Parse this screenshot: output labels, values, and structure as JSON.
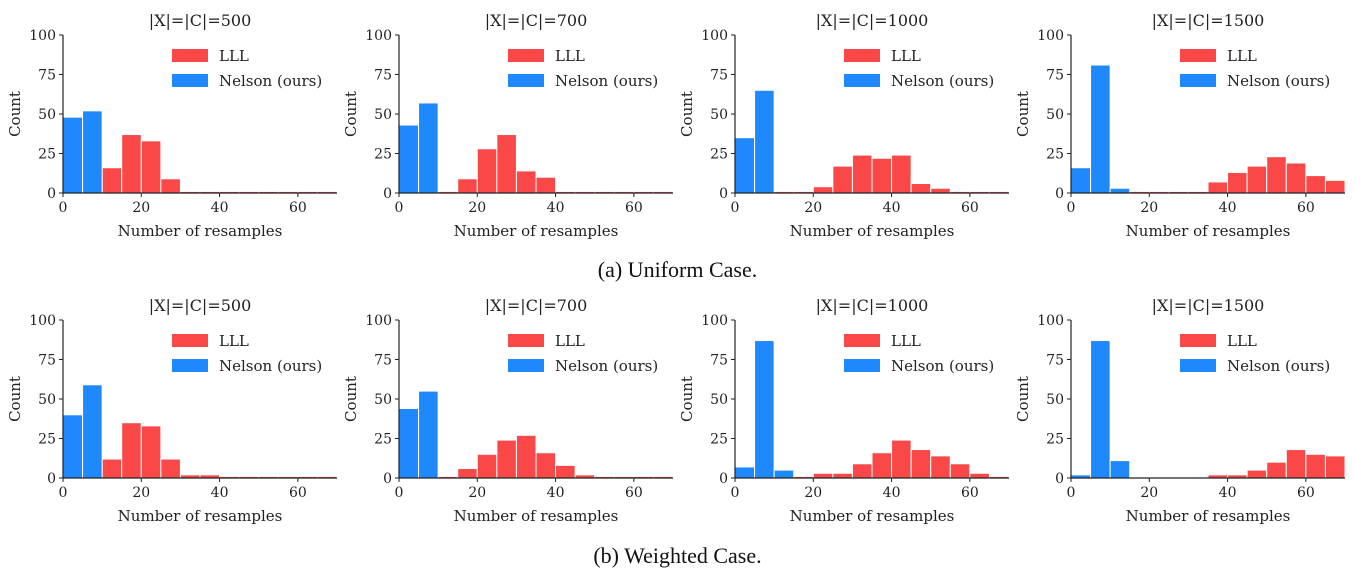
{
  "colors": {
    "lll": "#fa4848",
    "nelson": "#1f88fa",
    "axis": "#222222"
  },
  "captions": [
    "(a) Uniform Case.",
    "(b) Weighted Case."
  ],
  "chart_data": [
    {
      "type": "bar",
      "row": 0,
      "title": "|X|=|C|=500",
      "xlabel": "Number of resamples",
      "ylabel": "Count",
      "xlim": [
        0,
        70
      ],
      "ylim": [
        0,
        100
      ],
      "xticks": [
        0,
        20,
        40,
        60
      ],
      "yticks": [
        0,
        25,
        50,
        75,
        100
      ],
      "grid": false,
      "legend": "upper-right",
      "series": [
        {
          "name": "LLL",
          "bins": [
            [
              5,
              10,
              4
            ],
            [
              10,
              15,
              16
            ],
            [
              15,
              20,
              37
            ],
            [
              20,
              25,
              33
            ],
            [
              25,
              30,
              9
            ],
            [
              30,
              35,
              1
            ],
            [
              35,
              40,
              1
            ],
            [
              40,
              45,
              1
            ],
            [
              45,
              50,
              1
            ],
            [
              50,
              55,
              1
            ],
            [
              55,
              60,
              1
            ],
            [
              60,
              65,
              1
            ],
            [
              65,
              70,
              1
            ]
          ]
        },
        {
          "name": "Nelson (ours)",
          "bins": [
            [
              0,
              5,
              48
            ],
            [
              5,
              10,
              52
            ]
          ]
        }
      ]
    },
    {
      "type": "bar",
      "row": 0,
      "title": "|X|=|C|=700",
      "xlabel": "Number of resamples",
      "ylabel": "Count",
      "xlim": [
        0,
        70
      ],
      "ylim": [
        0,
        100
      ],
      "xticks": [
        0,
        20,
        40,
        60
      ],
      "yticks": [
        0,
        25,
        50,
        75,
        100
      ],
      "grid": false,
      "legend": "upper-right",
      "series": [
        {
          "name": "LLL",
          "bins": [
            [
              10,
              15,
              1
            ],
            [
              15,
              20,
              9
            ],
            [
              20,
              25,
              28
            ],
            [
              25,
              30,
              37
            ],
            [
              30,
              35,
              14
            ],
            [
              35,
              40,
              10
            ],
            [
              40,
              45,
              1
            ],
            [
              45,
              50,
              1
            ],
            [
              50,
              55,
              1
            ],
            [
              55,
              60,
              1
            ],
            [
              60,
              65,
              1
            ],
            [
              65,
              70,
              1
            ]
          ]
        },
        {
          "name": "Nelson (ours)",
          "bins": [
            [
              0,
              5,
              43
            ],
            [
              5,
              10,
              57
            ]
          ]
        }
      ]
    },
    {
      "type": "bar",
      "row": 0,
      "title": "|X|=|C|=1000",
      "xlabel": "Number of resamples",
      "ylabel": "Count",
      "xlim": [
        0,
        70
      ],
      "ylim": [
        0,
        100
      ],
      "xticks": [
        0,
        20,
        40,
        60
      ],
      "yticks": [
        0,
        25,
        50,
        75,
        100
      ],
      "grid": false,
      "legend": "upper-right",
      "series": [
        {
          "name": "LLL",
          "bins": [
            [
              10,
              15,
              1
            ],
            [
              15,
              20,
              1
            ],
            [
              20,
              25,
              4
            ],
            [
              25,
              30,
              17
            ],
            [
              30,
              35,
              24
            ],
            [
              35,
              40,
              22
            ],
            [
              40,
              45,
              24
            ],
            [
              45,
              50,
              6
            ],
            [
              50,
              55,
              3
            ],
            [
              55,
              60,
              1
            ],
            [
              60,
              65,
              1
            ],
            [
              65,
              70,
              1
            ]
          ]
        },
        {
          "name": "Nelson (ours)",
          "bins": [
            [
              0,
              5,
              35
            ],
            [
              5,
              10,
              65
            ]
          ]
        }
      ]
    },
    {
      "type": "bar",
      "row": 0,
      "title": "|X|=|C|=1500",
      "xlabel": "Number of resamples",
      "ylabel": "Count",
      "xlim": [
        0,
        70
      ],
      "ylim": [
        0,
        100
      ],
      "xticks": [
        0,
        20,
        40,
        60
      ],
      "yticks": [
        0,
        25,
        50,
        75,
        100
      ],
      "grid": false,
      "legend": "upper-right",
      "series": [
        {
          "name": "LLL",
          "bins": [
            [
              15,
              20,
              1
            ],
            [
              20,
              25,
              1
            ],
            [
              25,
              30,
              1
            ],
            [
              30,
              35,
              1
            ],
            [
              35,
              40,
              7
            ],
            [
              40,
              45,
              13
            ],
            [
              45,
              50,
              17
            ],
            [
              50,
              55,
              23
            ],
            [
              55,
              60,
              19
            ],
            [
              60,
              65,
              11
            ],
            [
              65,
              70,
              8
            ]
          ]
        },
        {
          "name": "Nelson (ours)",
          "bins": [
            [
              0,
              5,
              16
            ],
            [
              5,
              10,
              81
            ],
            [
              10,
              15,
              3
            ]
          ]
        }
      ]
    },
    {
      "type": "bar",
      "row": 1,
      "title": "|X|=|C|=500",
      "xlabel": "Number of resamples",
      "ylabel": "Count",
      "xlim": [
        0,
        70
      ],
      "ylim": [
        0,
        100
      ],
      "xticks": [
        0,
        20,
        40,
        60
      ],
      "yticks": [
        0,
        25,
        50,
        75,
        100
      ],
      "grid": false,
      "legend": "upper-right",
      "series": [
        {
          "name": "LLL",
          "bins": [
            [
              5,
              10,
              4
            ],
            [
              10,
              15,
              12
            ],
            [
              15,
              20,
              35
            ],
            [
              20,
              25,
              33
            ],
            [
              25,
              30,
              12
            ],
            [
              30,
              35,
              2
            ],
            [
              35,
              40,
              2
            ],
            [
              40,
              45,
              1
            ],
            [
              45,
              50,
              1
            ],
            [
              50,
              55,
              1
            ],
            [
              55,
              60,
              1
            ],
            [
              60,
              65,
              1
            ],
            [
              65,
              70,
              1
            ]
          ]
        },
        {
          "name": "Nelson (ours)",
          "bins": [
            [
              0,
              5,
              40
            ],
            [
              5,
              10,
              59
            ]
          ]
        }
      ]
    },
    {
      "type": "bar",
      "row": 1,
      "title": "|X|=|C|=700",
      "xlabel": "Number of resamples",
      "ylabel": "Count",
      "xlim": [
        0,
        70
      ],
      "ylim": [
        0,
        100
      ],
      "xticks": [
        0,
        20,
        40,
        60
      ],
      "yticks": [
        0,
        25,
        50,
        75,
        100
      ],
      "grid": false,
      "legend": "upper-right",
      "series": [
        {
          "name": "LLL",
          "bins": [
            [
              10,
              15,
              1
            ],
            [
              15,
              20,
              6
            ],
            [
              20,
              25,
              15
            ],
            [
              25,
              30,
              24
            ],
            [
              30,
              35,
              27
            ],
            [
              35,
              40,
              16
            ],
            [
              40,
              45,
              8
            ],
            [
              45,
              50,
              2
            ],
            [
              50,
              55,
              1
            ],
            [
              55,
              60,
              1
            ],
            [
              60,
              65,
              1
            ],
            [
              65,
              70,
              1
            ]
          ]
        },
        {
          "name": "Nelson (ours)",
          "bins": [
            [
              0,
              5,
              44
            ],
            [
              5,
              10,
              55
            ]
          ]
        }
      ]
    },
    {
      "type": "bar",
      "row": 1,
      "title": "|X|=|C|=1000",
      "xlabel": "Number of resamples",
      "ylabel": "Count",
      "xlim": [
        0,
        70
      ],
      "ylim": [
        0,
        100
      ],
      "xticks": [
        0,
        20,
        40,
        60
      ],
      "yticks": [
        0,
        25,
        50,
        75,
        100
      ],
      "grid": false,
      "legend": "upper-right",
      "series": [
        {
          "name": "LLL",
          "bins": [
            [
              15,
              20,
              1
            ],
            [
              20,
              25,
              3
            ],
            [
              25,
              30,
              3
            ],
            [
              30,
              35,
              9
            ],
            [
              35,
              40,
              16
            ],
            [
              40,
              45,
              24
            ],
            [
              45,
              50,
              18
            ],
            [
              50,
              55,
              14
            ],
            [
              55,
              60,
              9
            ],
            [
              60,
              65,
              3
            ],
            [
              65,
              70,
              1
            ]
          ]
        },
        {
          "name": "Nelson (ours)",
          "bins": [
            [
              0,
              5,
              7
            ],
            [
              5,
              10,
              87
            ],
            [
              10,
              15,
              5
            ]
          ]
        }
      ]
    },
    {
      "type": "bar",
      "row": 1,
      "title": "|X|=|C|=1500",
      "xlabel": "Number of resamples",
      "ylabel": "Count",
      "xlim": [
        0,
        70
      ],
      "ylim": [
        0,
        100
      ],
      "xticks": [
        0,
        20,
        40,
        60
      ],
      "yticks": [
        0,
        25,
        50,
        75,
        100
      ],
      "grid": false,
      "legend": "upper-right",
      "series": [
        {
          "name": "LLL",
          "bins": [
            [
              35,
              40,
              2
            ],
            [
              40,
              45,
              2
            ],
            [
              45,
              50,
              5
            ],
            [
              50,
              55,
              10
            ],
            [
              55,
              60,
              18
            ],
            [
              60,
              65,
              15
            ],
            [
              65,
              70,
              14
            ]
          ]
        },
        {
          "name": "Nelson (ours)",
          "bins": [
            [
              0,
              5,
              2
            ],
            [
              5,
              10,
              87
            ],
            [
              10,
              15,
              11
            ]
          ]
        }
      ]
    }
  ]
}
